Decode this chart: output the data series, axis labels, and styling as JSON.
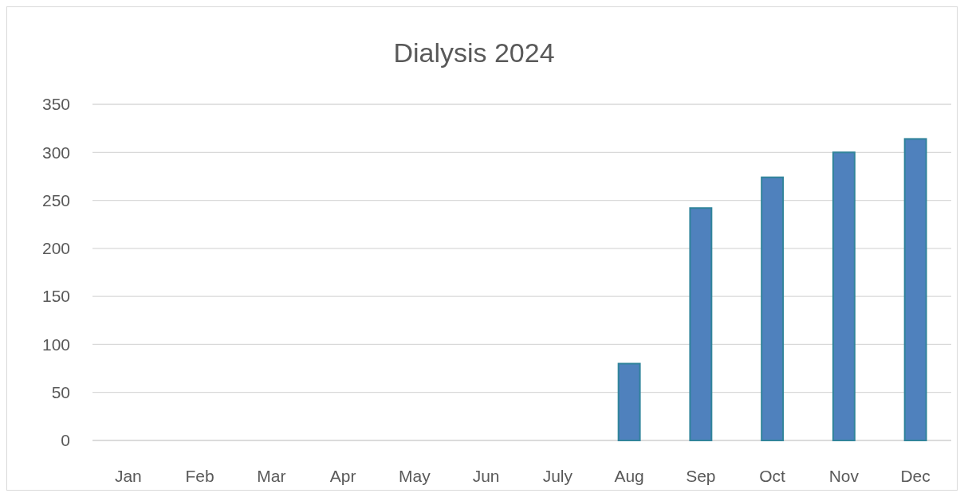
{
  "chart_data": {
    "type": "bar",
    "title": "Dialysis 2024",
    "categories": [
      "Jan",
      "Feb",
      "Mar",
      "Apr",
      "May",
      "Jun",
      "July",
      "Aug",
      "Sep",
      "Oct",
      "Nov",
      "Dec"
    ],
    "values": [
      null,
      null,
      null,
      null,
      null,
      null,
      null,
      80,
      242,
      274,
      300,
      314
    ],
    "color": "#4f81bd",
    "ylim": [
      0,
      350
    ],
    "yticks": [
      0,
      50,
      100,
      150,
      200,
      250,
      300,
      350
    ],
    "grid": "y"
  }
}
